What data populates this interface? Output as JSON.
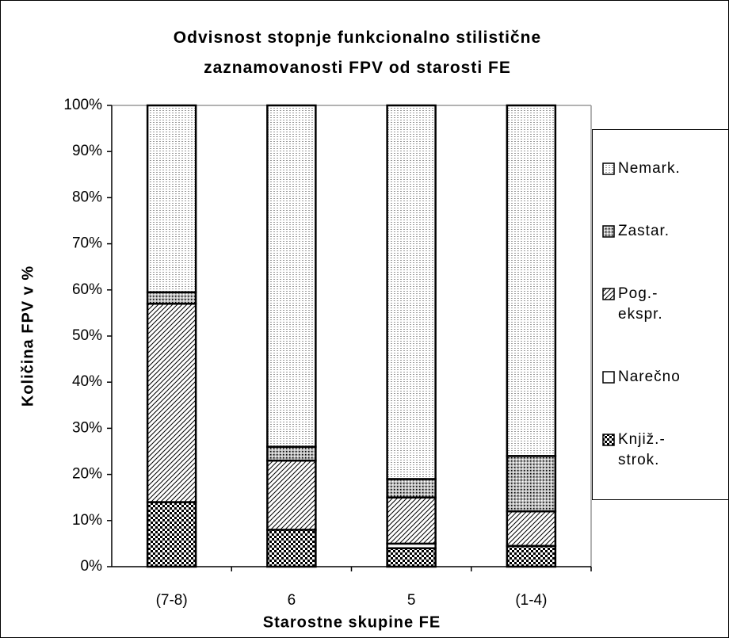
{
  "chart_data": {
    "type": "stacked_bar",
    "title": "Odvisnost stopnje funkcionalno stilistične zaznamovanosti FPV od starosti FE",
    "x_label": "Starostne skupine FE",
    "y_label": "Količina FPV v %",
    "categories": [
      "(7-8)",
      "6",
      "5",
      "(1-4)"
    ],
    "series": [
      {
        "name": "Knjiž.-strok.",
        "color": "#000000",
        "pattern": "checker",
        "values": [
          14,
          8,
          4,
          4.5
        ]
      },
      {
        "name": "Narečno",
        "color": "#000000",
        "pattern": "blank",
        "values": [
          0,
          0,
          1,
          0
        ]
      },
      {
        "name": "Pog.-ekspr.",
        "color": "#000000",
        "pattern": "hatch",
        "values": [
          43,
          15,
          10,
          7.5
        ]
      },
      {
        "name": "Zastar.",
        "color": "#000000",
        "pattern": "darkdots",
        "values": [
          2.5,
          3,
          4,
          12
        ]
      },
      {
        "name": "Nemark.",
        "color": "#000000",
        "pattern": "dots",
        "values": [
          40.5,
          74,
          81,
          76
        ]
      }
    ],
    "ylim": [
      0,
      100
    ],
    "yticks": [
      {
        "value": 0,
        "label": "0%"
      },
      {
        "value": 10,
        "label": "10%"
      },
      {
        "value": 20,
        "label": "20%"
      },
      {
        "value": 30,
        "label": "30%"
      },
      {
        "value": 40,
        "label": "40%"
      },
      {
        "value": 50,
        "label": "50%"
      },
      {
        "value": 60,
        "label": "60%"
      },
      {
        "value": 70,
        "label": "70%"
      },
      {
        "value": 80,
        "label": "80%"
      },
      {
        "value": 90,
        "label": "90%"
      },
      {
        "value": 100,
        "label": "100%"
      }
    ],
    "grid": false,
    "legend": "right"
  }
}
